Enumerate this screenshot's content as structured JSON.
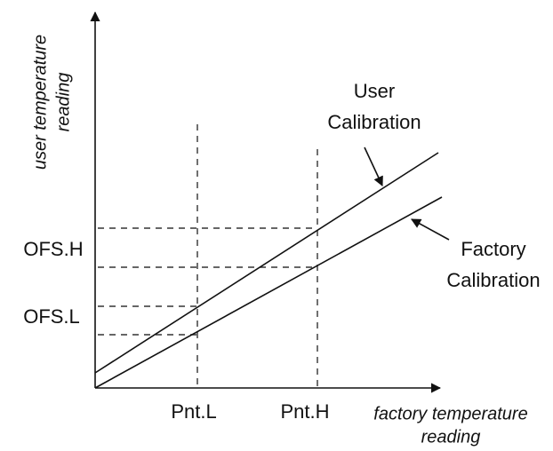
{
  "axes": {
    "x_label": [
      "factory temperature",
      "reading"
    ],
    "y_label": [
      "user temperature",
      "reading"
    ]
  },
  "y_markers": [
    "OFS.H",
    "OFS.L"
  ],
  "x_markers": [
    "Pnt.L",
    "Pnt.H"
  ],
  "lines": [
    {
      "label": [
        "User",
        "Calibration"
      ]
    },
    {
      "label": [
        "Factory",
        "Calibration"
      ]
    }
  ]
}
